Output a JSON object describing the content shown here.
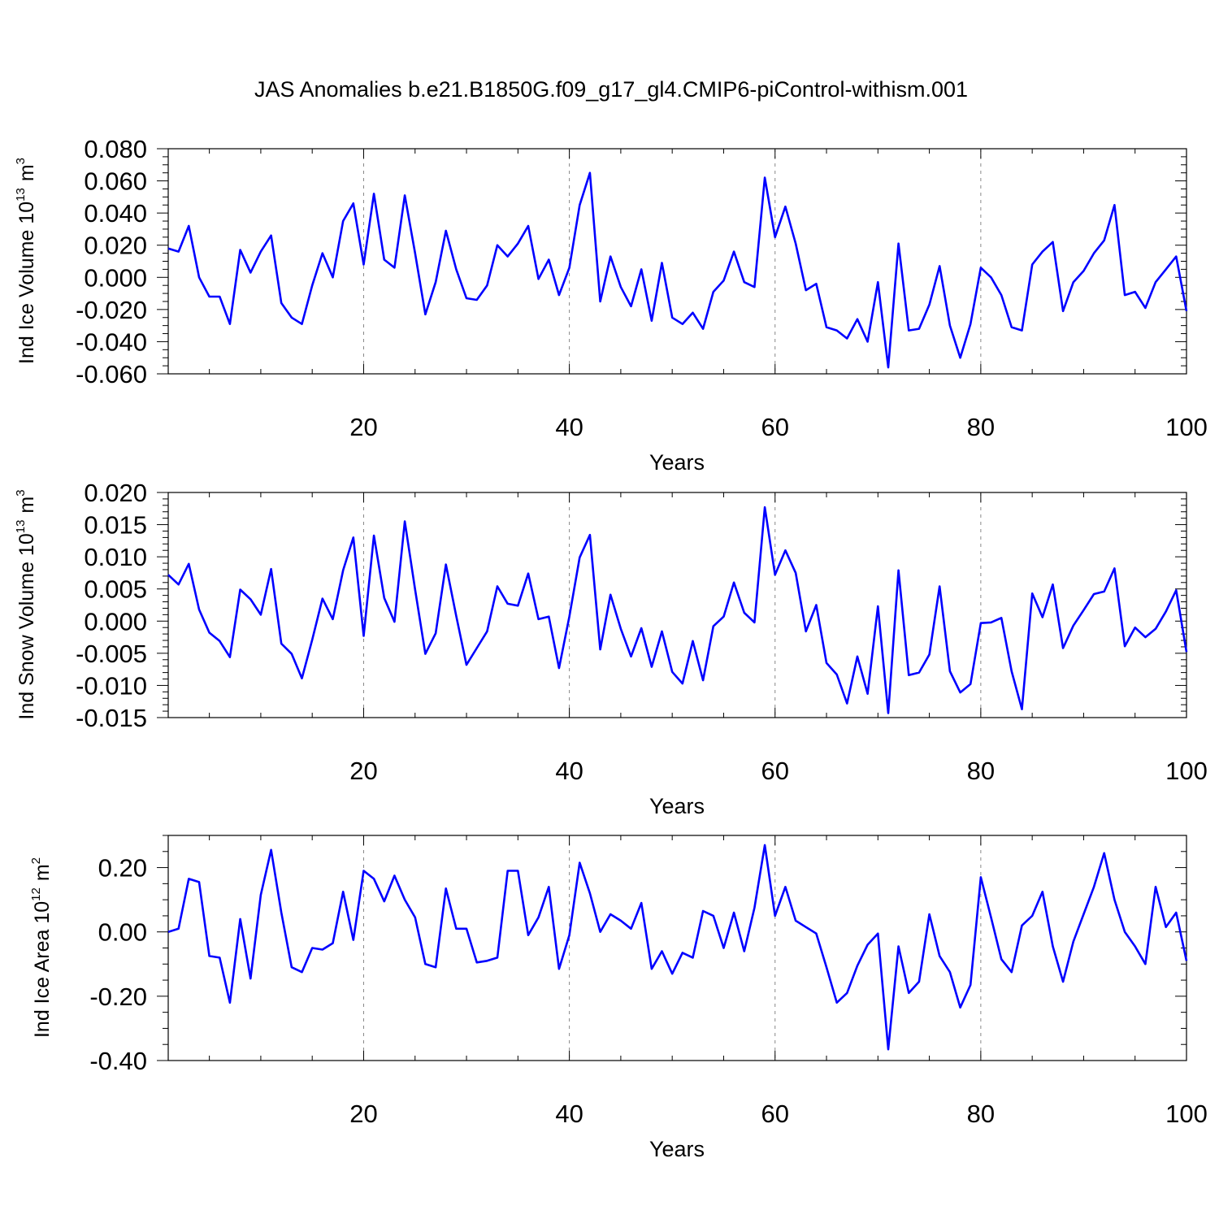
{
  "title": "JAS Anomalies b.e21.B1850G.f09_g17_gl4.CMIP6-piControl-withism.001",
  "colors": {
    "line": "#0000ff",
    "axis": "#000000",
    "grid": "#888888"
  },
  "chart_data": [
    {
      "type": "line",
      "ylabel": "Ind Ice Volume 10",
      "ylabel_exp": "13",
      "ylabel_unit": "m",
      "ylabel_unit_exp": "3",
      "xlabel": "Years",
      "xlim": [
        1,
        100
      ],
      "ylim": [
        -0.06,
        0.08
      ],
      "x_ticks": [
        20,
        40,
        60,
        80,
        100
      ],
      "x_tick_labels": [
        "20",
        "40",
        "60",
        "80",
        "100"
      ],
      "y_ticks": [
        -0.06,
        -0.04,
        -0.02,
        0.0,
        0.02,
        0.04,
        0.06,
        0.08
      ],
      "y_tick_labels": [
        "-0.060",
        "-0.040",
        "-0.020",
        "0.000",
        "0.020",
        "0.040",
        "0.060",
        "0.080"
      ],
      "y_minor_step": 0.005,
      "gridlines_x": [
        20,
        40,
        60,
        80
      ],
      "series": [
        {
          "name": "Ind Ice Volume",
          "values": [
            0.018,
            0.016,
            0.032,
            0.0,
            -0.012,
            -0.012,
            -0.029,
            0.017,
            0.003,
            0.016,
            0.026,
            -0.016,
            -0.025,
            -0.029,
            -0.005,
            0.015,
            0.0,
            0.035,
            0.046,
            0.008,
            0.052,
            0.011,
            0.006,
            0.051,
            0.015,
            -0.023,
            -0.003,
            0.029,
            0.005,
            -0.013,
            -0.014,
            -0.005,
            0.02,
            0.013,
            0.021,
            0.032,
            -0.001,
            0.011,
            -0.011,
            0.006,
            0.045,
            0.065,
            -0.015,
            0.013,
            -0.006,
            -0.018,
            0.005,
            -0.027,
            0.009,
            -0.025,
            -0.029,
            -0.022,
            -0.032,
            -0.009,
            -0.002,
            0.016,
            -0.003,
            -0.006,
            0.062,
            0.025,
            0.044,
            0.021,
            -0.008,
            -0.004,
            -0.031,
            -0.033,
            -0.038,
            -0.026,
            -0.04,
            -0.003,
            -0.056,
            0.021,
            -0.033,
            -0.032,
            -0.017,
            0.007,
            -0.03,
            -0.05,
            -0.029,
            0.006,
            0.0,
            -0.011,
            -0.031,
            -0.033,
            0.008,
            0.016,
            0.022,
            -0.021,
            -0.003,
            0.004,
            0.015,
            0.023,
            0.045,
            -0.011,
            -0.009,
            -0.019,
            -0.003,
            0.005,
            0.013,
            -0.021
          ]
        }
      ]
    },
    {
      "type": "line",
      "ylabel": "Ind Snow Volume 10",
      "ylabel_exp": "13",
      "ylabel_unit": "m",
      "ylabel_unit_exp": "3",
      "xlabel": "Years",
      "xlim": [
        1,
        100
      ],
      "ylim": [
        -0.015,
        0.02
      ],
      "x_ticks": [
        20,
        40,
        60,
        80,
        100
      ],
      "x_tick_labels": [
        "20",
        "40",
        "60",
        "80",
        "100"
      ],
      "y_ticks": [
        -0.015,
        -0.01,
        -0.005,
        0.0,
        0.005,
        0.01,
        0.015,
        0.02
      ],
      "y_tick_labels": [
        "-0.015",
        "-0.010",
        "-0.005",
        "0.000",
        "0.005",
        "0.010",
        "0.015",
        "0.020"
      ],
      "y_minor_step": 0.001,
      "gridlines_x": [
        20,
        40,
        60,
        80
      ],
      "series": [
        {
          "name": "Ind Snow Volume",
          "values": [
            0.0072,
            0.0057,
            0.0089,
            0.0018,
            -0.0018,
            -0.0031,
            -0.0056,
            0.0049,
            0.0034,
            0.001,
            0.0081,
            -0.0035,
            -0.0051,
            -0.0089,
            -0.0029,
            0.0035,
            0.0003,
            0.0079,
            0.013,
            -0.0023,
            0.0133,
            0.0036,
            -0.0001,
            0.0155,
            0.0049,
            -0.0051,
            -0.0019,
            0.0088,
            0.0008,
            -0.0068,
            -0.0042,
            -0.0016,
            0.0054,
            0.0027,
            0.0024,
            0.0074,
            0.0003,
            0.0007,
            -0.0073,
            0.0007,
            0.0099,
            0.0134,
            -0.0044,
            0.0041,
            -0.0012,
            -0.0055,
            -0.0011,
            -0.0071,
            -0.0016,
            -0.0079,
            -0.0097,
            -0.0031,
            -0.0092,
            -0.0008,
            0.0007,
            0.006,
            0.0013,
            -0.0002,
            0.0177,
            0.0072,
            0.011,
            0.0075,
            -0.0016,
            0.0025,
            -0.0065,
            -0.0083,
            -0.0128,
            -0.0055,
            -0.0113,
            0.0023,
            -0.0143,
            0.0079,
            -0.0084,
            -0.008,
            -0.0052,
            0.0054,
            -0.0078,
            -0.0111,
            -0.0098,
            -0.0003,
            -0.0002,
            0.0005,
            -0.0078,
            -0.0137,
            0.0043,
            0.0006,
            0.0057,
            -0.0042,
            -0.0007,
            0.0017,
            0.0042,
            0.0046,
            0.0082,
            -0.0039,
            -0.001,
            -0.0025,
            -0.0012,
            0.0015,
            0.0048,
            -0.0048
          ]
        }
      ]
    },
    {
      "type": "line",
      "ylabel": "Ind Ice Area 10",
      "ylabel_exp": "12",
      "ylabel_unit": "m",
      "ylabel_unit_exp": "2",
      "xlabel": "Years",
      "xlim": [
        1,
        100
      ],
      "ylim": [
        -0.4,
        0.3
      ],
      "x_ticks": [
        20,
        40,
        60,
        80,
        100
      ],
      "x_tick_labels": [
        "20",
        "40",
        "60",
        "80",
        "100"
      ],
      "y_ticks": [
        -0.4,
        -0.2,
        0.0,
        0.2
      ],
      "y_tick_labels": [
        "-0.40",
        "-0.20",
        "0.00",
        "0.20"
      ],
      "y_minor_step": 0.05,
      "gridlines_x": [
        20,
        40,
        60,
        80
      ],
      "series": [
        {
          "name": "Ind Ice Area",
          "values": [
            0.0,
            0.01,
            0.165,
            0.155,
            -0.075,
            -0.08,
            -0.22,
            0.04,
            -0.145,
            0.115,
            0.255,
            0.06,
            -0.11,
            -0.125,
            -0.05,
            -0.055,
            -0.035,
            0.125,
            -0.025,
            0.19,
            0.165,
            0.095,
            0.175,
            0.1,
            0.045,
            -0.1,
            -0.11,
            0.135,
            0.01,
            0.01,
            -0.095,
            -0.09,
            -0.08,
            0.19,
            0.19,
            -0.01,
            0.045,
            0.14,
            -0.115,
            -0.01,
            0.215,
            0.12,
            0.0,
            0.055,
            0.035,
            0.01,
            0.09,
            -0.115,
            -0.06,
            -0.13,
            -0.065,
            -0.08,
            0.065,
            0.05,
            -0.05,
            0.06,
            -0.06,
            0.075,
            0.27,
            0.05,
            0.14,
            0.035,
            0.015,
            -0.005,
            -0.11,
            -0.22,
            -0.19,
            -0.105,
            -0.04,
            -0.005,
            -0.365,
            -0.045,
            -0.19,
            -0.155,
            0.055,
            -0.075,
            -0.125,
            -0.235,
            -0.165,
            0.17,
            0.045,
            -0.085,
            -0.125,
            0.02,
            0.05,
            0.125,
            -0.045,
            -0.155,
            -0.03,
            0.055,
            0.14,
            0.245,
            0.1,
            0.0,
            -0.045,
            -0.1,
            0.14,
            0.015,
            0.06,
            -0.09
          ]
        }
      ]
    }
  ]
}
